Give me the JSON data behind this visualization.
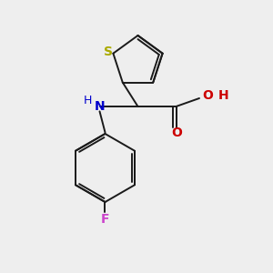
{
  "background_color": "#eeeeee",
  "bond_color": "#1a1a1a",
  "S_color": "#aaaa00",
  "N_color": "#0000cc",
  "O_color": "#cc0000",
  "F_color": "#cc44cc",
  "H_color": "#cc0000",
  "figsize": [
    3.0,
    3.0
  ],
  "dpi": 100,
  "lw": 1.4,
  "xlim": [
    0,
    10
  ],
  "ylim": [
    0,
    10
  ]
}
